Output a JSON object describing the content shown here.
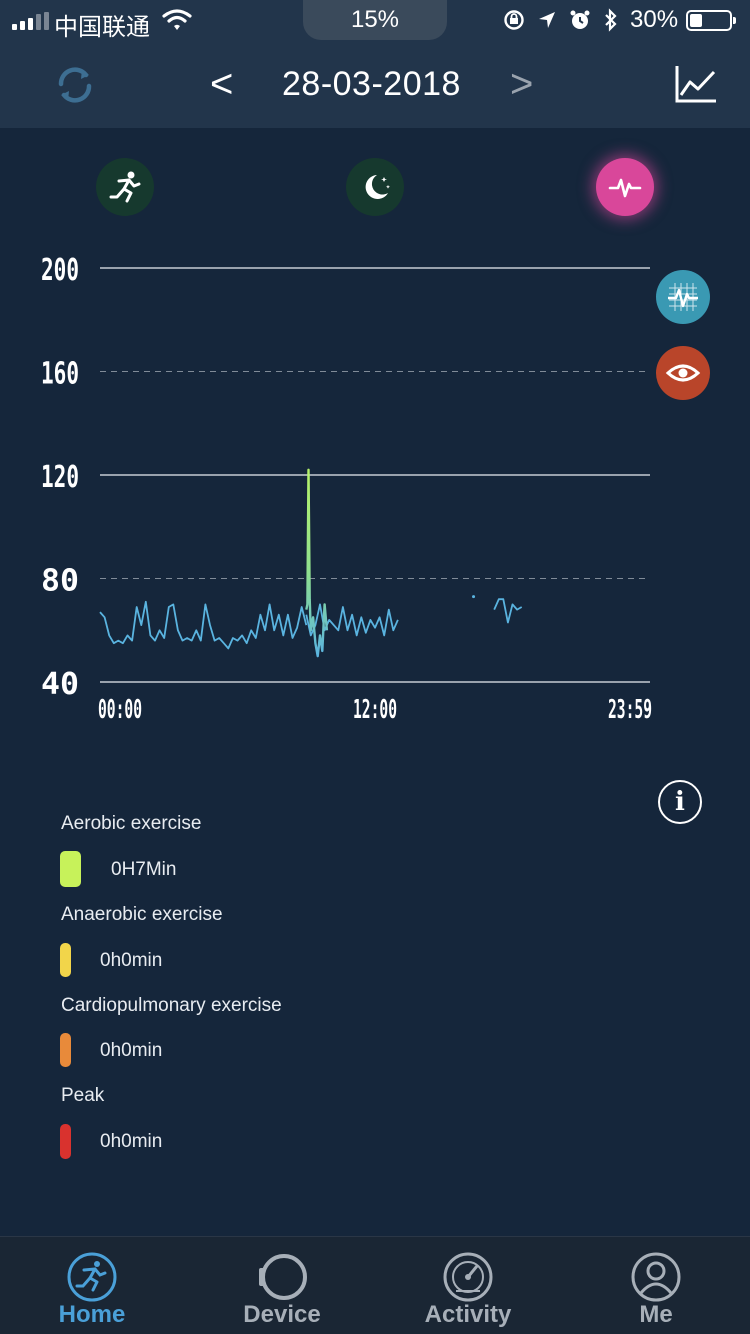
{
  "status_bar": {
    "carrier": "中国联通",
    "center_battery": "15%",
    "battery_percent": "30%"
  },
  "header": {
    "date": "28-03-2018",
    "prev_label": "<",
    "next_label": ">"
  },
  "modes": [
    {
      "icon": "runner-icon",
      "active": false
    },
    {
      "icon": "moon-stars-icon",
      "active": false
    },
    {
      "icon": "heartbeat-icon",
      "active": true
    }
  ],
  "side_buttons": [
    {
      "icon": "ecg-grid-icon",
      "color": "#3a99b3"
    },
    {
      "icon": "eye-icon",
      "color": "#b9452a"
    }
  ],
  "chart_data": {
    "type": "line",
    "ylim": [
      40,
      200
    ],
    "y_ticks": [
      "200",
      "160",
      "120",
      "80",
      "40"
    ],
    "x_ticks": [
      "00:00",
      "12:00",
      "23:59"
    ],
    "grid": true,
    "gridline_styles": {
      "200": "solid",
      "160": "dashed",
      "120": "solid",
      "80": "dashed",
      "40": "solid"
    },
    "line_color": "#5ab4e0",
    "peak_color": "#b6f36a",
    "series": [
      {
        "segments": [
          [
            [
              0.0,
              67
            ],
            [
              0.2,
              65
            ],
            [
              0.4,
              58
            ],
            [
              0.6,
              55
            ],
            [
              0.8,
              56
            ],
            [
              1.0,
              55
            ],
            [
              1.2,
              58
            ],
            [
              1.4,
              56
            ],
            [
              1.6,
              69
            ],
            [
              1.8,
              62
            ],
            [
              2.0,
              71
            ],
            [
              2.2,
              58
            ],
            [
              2.4,
              56
            ],
            [
              2.6,
              60
            ],
            [
              2.8,
              57
            ],
            [
              3.0,
              69
            ],
            [
              3.2,
              70
            ],
            [
              3.4,
              60
            ],
            [
              3.6,
              56
            ],
            [
              3.8,
              57
            ],
            [
              4.0,
              56
            ],
            [
              4.2,
              60
            ],
            [
              4.4,
              56
            ],
            [
              4.6,
              70
            ],
            [
              4.8,
              62
            ],
            [
              5.0,
              56
            ],
            [
              5.2,
              57
            ],
            [
              5.4,
              55
            ],
            [
              5.6,
              53
            ],
            [
              5.8,
              57
            ],
            [
              6.0,
              56
            ],
            [
              6.2,
              58
            ],
            [
              6.4,
              55
            ],
            [
              6.6,
              60
            ],
            [
              6.8,
              57
            ],
            [
              7.0,
              66
            ],
            [
              7.2,
              60
            ],
            [
              7.4,
              70
            ],
            [
              7.6,
              60
            ],
            [
              7.8,
              66
            ],
            [
              8.0,
              58
            ],
            [
              8.2,
              66
            ],
            [
              8.4,
              57
            ],
            [
              8.6,
              61
            ],
            [
              8.8,
              69
            ],
            [
              9.0,
              62
            ]
          ],
          [
            [
              9.0,
              66
            ],
            [
              9.2,
              58
            ],
            [
              9.4,
              62
            ],
            [
              9.6,
              70
            ],
            [
              9.8,
              60
            ],
            [
              10.0,
              64
            ],
            [
              10.4,
              60
            ],
            [
              10.6,
              69
            ],
            [
              10.8,
              60
            ],
            [
              11.0,
              66
            ],
            [
              11.2,
              58
            ],
            [
              11.4,
              65
            ],
            [
              11.6,
              59
            ],
            [
              11.8,
              64
            ],
            [
              12.0,
              61
            ],
            [
              12.2,
              65
            ],
            [
              12.4,
              58
            ],
            [
              12.6,
              68
            ],
            [
              12.8,
              60
            ],
            [
              13.0,
              64
            ]
          ]
        ]
      },
      {
        "name": "",
        "segments": [
          [
            [
              9.0,
              68
            ],
            [
              9.05,
              70
            ],
            [
              9.1,
              122
            ],
            [
              9.15,
              72
            ],
            [
              9.2,
              60
            ],
            [
              9.3,
              65
            ],
            [
              9.4,
              55
            ],
            [
              9.5,
              50
            ],
            [
              9.6,
              58
            ],
            [
              9.7,
              52
            ],
            [
              9.8,
              70
            ],
            [
              9.9,
              60
            ]
          ]
        ]
      },
      {
        "segments": [
          [
            [
              16.3,
              73
            ]
          ],
          [
            [
              17.2,
              68
            ],
            [
              17.4,
              72
            ],
            [
              17.6,
              72
            ],
            [
              17.8,
              63
            ],
            [
              18.0,
              70
            ],
            [
              18.2,
              68
            ],
            [
              18.4,
              69
            ]
          ]
        ]
      }
    ]
  },
  "legend": [
    {
      "label": "Aerobic exercise",
      "value": "0H7Min",
      "color": "#c7f25a"
    },
    {
      "label": "Anaerobic exercise",
      "value": "0h0min",
      "color": "#f2d54a"
    },
    {
      "label": "Cardiopulmonary exercise",
      "value": "0h0min",
      "color": "#e88a3a"
    },
    {
      "label": "Peak",
      "value": "0h0min",
      "color": "#d9322e"
    }
  ],
  "tabs": [
    {
      "label": "Home",
      "icon": "runner-circle-icon",
      "active": true
    },
    {
      "label": "Device",
      "icon": "watch-icon",
      "active": false
    },
    {
      "label": "Activity",
      "icon": "gauge-icon",
      "active": false
    },
    {
      "label": "Me",
      "icon": "user-icon",
      "active": false
    }
  ]
}
